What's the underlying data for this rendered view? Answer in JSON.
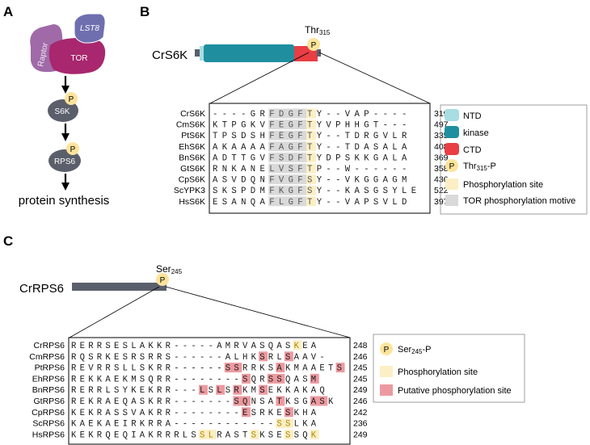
{
  "panels": {
    "a": "A",
    "b": "B",
    "c": "C"
  },
  "colors": {
    "ntd": "#a8dde3",
    "kinase": "#1f8fa0",
    "ctd": "#e83e44",
    "phospho_circle": "#fde49b",
    "phospho_site": "#fbefc5",
    "tor_motif": "#d9d9d9",
    "putative": "#ec9aa0",
    "grey_node": "#5b5f6b",
    "tor": "#a8276e",
    "raptor": "#a06aa8",
    "lst8": "#6f6fb0",
    "ser_text": "#b08a00"
  },
  "pathway": {
    "raptor": "Raptor",
    "lst8": "LST8",
    "tor": "TOR",
    "s6k": "S6K",
    "rps6": "RPS6",
    "p": "P",
    "output": "protein synthesis"
  },
  "s6k": {
    "protein": "CrS6K",
    "site": "Thr",
    "site_sub": "315",
    "p": "P",
    "alignment": [
      {
        "name": "CrS6K",
        "seq": "----GRFDGFTY--VAP----",
        "end": "319"
      },
      {
        "name": "CmS6K",
        "seq": "KTPGKVFEGFTYVPHHGT---",
        "end": "497"
      },
      {
        "name": "PtS6K",
        "seq": "TPSDSHFEGFTY--TDRGVLR",
        "end": "335"
      },
      {
        "name": "EhS6K",
        "seq": "AKAAAAFAGFTY--TDASALA",
        "end": "408"
      },
      {
        "name": "BnS6K",
        "seq": "ADTTGVFSDFTYDPSKKGALA",
        "end": "369"
      },
      {
        "name": "GtS6K",
        "seq": "RNKANELVSFTP--W------",
        "end": "358"
      },
      {
        "name": "CpS6K",
        "seq": "ASVDQNFVGFSY--VKGGAGM",
        "end": "436"
      },
      {
        "name": "ScYPK3",
        "seq": "SKSPDMFKGFSY--KASGSYLE",
        "end": "522"
      },
      {
        "name": "HsS6K",
        "seq": "ESANQAFLGFTY--VAPSVLD",
        "end": "397"
      }
    ],
    "legend": [
      {
        "key": "ntd",
        "label": "NTD"
      },
      {
        "key": "kinase",
        "label": "kinase"
      },
      {
        "key": "ctd",
        "label": "CTD"
      },
      {
        "key": "phospho",
        "label": "Thr",
        "sub": "315",
        "suffix": "-P"
      },
      {
        "key": "site",
        "label": "Phosphorylation site"
      },
      {
        "key": "tor",
        "label": "TOR phosphorylation motive"
      }
    ]
  },
  "rps6": {
    "protein": "CrRPS6",
    "site": "Ser",
    "site_sub": "245",
    "p": "P",
    "alignment": [
      {
        "name": "CrRPS6",
        "seq": "RERRSESLAKKR-----AMRVASQASKEA",
        "end": "248"
      },
      {
        "name": "CmRPS6",
        "seq": "RQSRKESRSRRS------ALHKSRLSAAV-",
        "end": "246"
      },
      {
        "name": "PtRPS6",
        "seq": "REVRRSLLSKRR------SSRRKSAKMAAETS",
        "end": "245"
      },
      {
        "name": "EhRPS6",
        "seq": "REKKAEKMSQRR--------SQRSSQASM",
        "end": "245"
      },
      {
        "name": "BnRPS6",
        "seq": "RERRLSYKEKRR---LSLSRKMSEKKAKAQ",
        "end": "249"
      },
      {
        "name": "GtRPS6",
        "seq": "REKRAEQASKRR-------SQNSATKSGASK",
        "end": "246"
      },
      {
        "name": "CpRPS6",
        "seq": "KEKRASSVAKRR--------ESRKESKHA",
        "end": "242"
      },
      {
        "name": "ScRPS6",
        "seq": "KAEKAEIRKRRA------------SSLKA",
        "end": "236"
      },
      {
        "name": "HsRPS6",
        "seq": "KEKRQEQIAKRRRLSSLRASTSKSESSQK",
        "end": "249"
      }
    ],
    "legend": [
      {
        "key": "phospho",
        "label": "Ser",
        "sub": "245",
        "suffix": "-P"
      },
      {
        "key": "site",
        "label": "Phosphorylation site"
      },
      {
        "key": "putative",
        "label": "Putative phosphorylation site"
      }
    ]
  }
}
